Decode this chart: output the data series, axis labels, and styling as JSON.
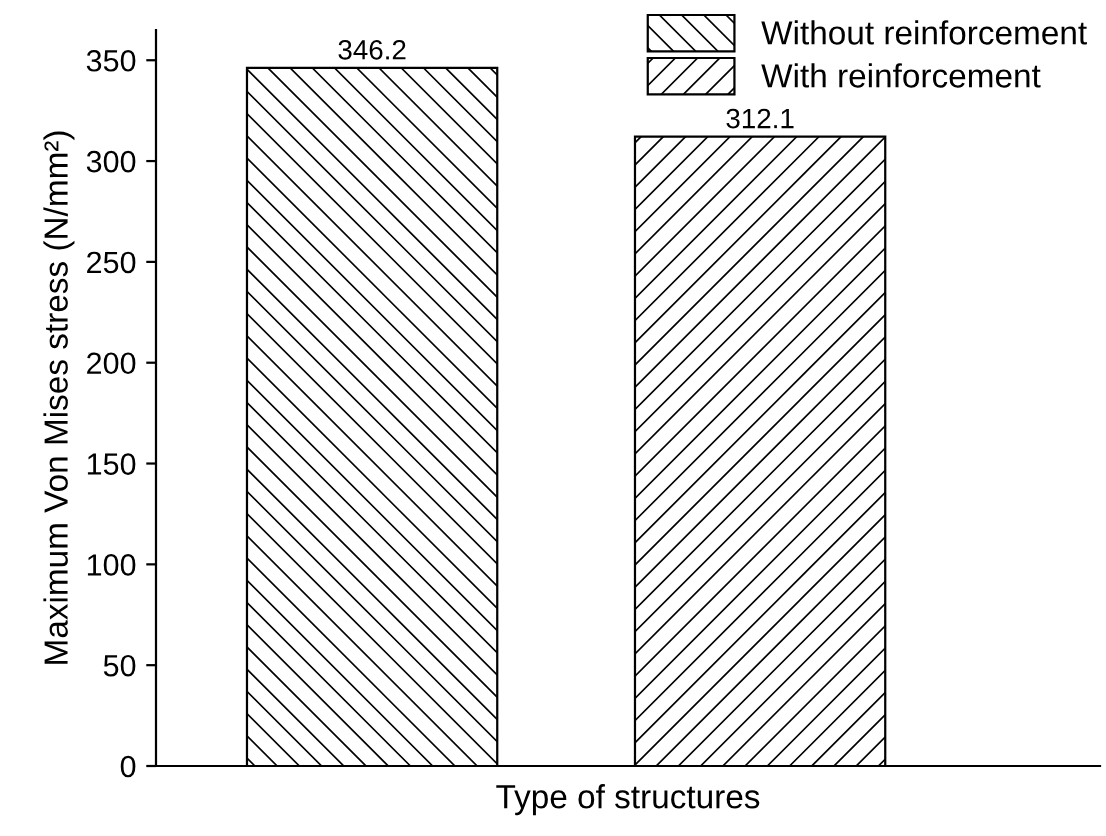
{
  "chart_data": {
    "type": "bar",
    "xlabel": "Type of structures",
    "ylabel": "Maximum Von Mises stress (N/mm²)",
    "categories": [
      null,
      null
    ],
    "series": [
      {
        "name": "Without reinforcement",
        "color": "#000000",
        "values": [
          346.2,
          null
        ]
      },
      {
        "name": "With reinforcement",
        "color": "#000000",
        "values": [
          null,
          312.1
        ]
      }
    ],
    "ylim": [
      0,
      365
    ],
    "yticks": [
      0,
      50,
      100,
      150,
      200,
      250,
      300,
      350
    ],
    "data_labels": true,
    "legend": "top right",
    "grid": false
  }
}
